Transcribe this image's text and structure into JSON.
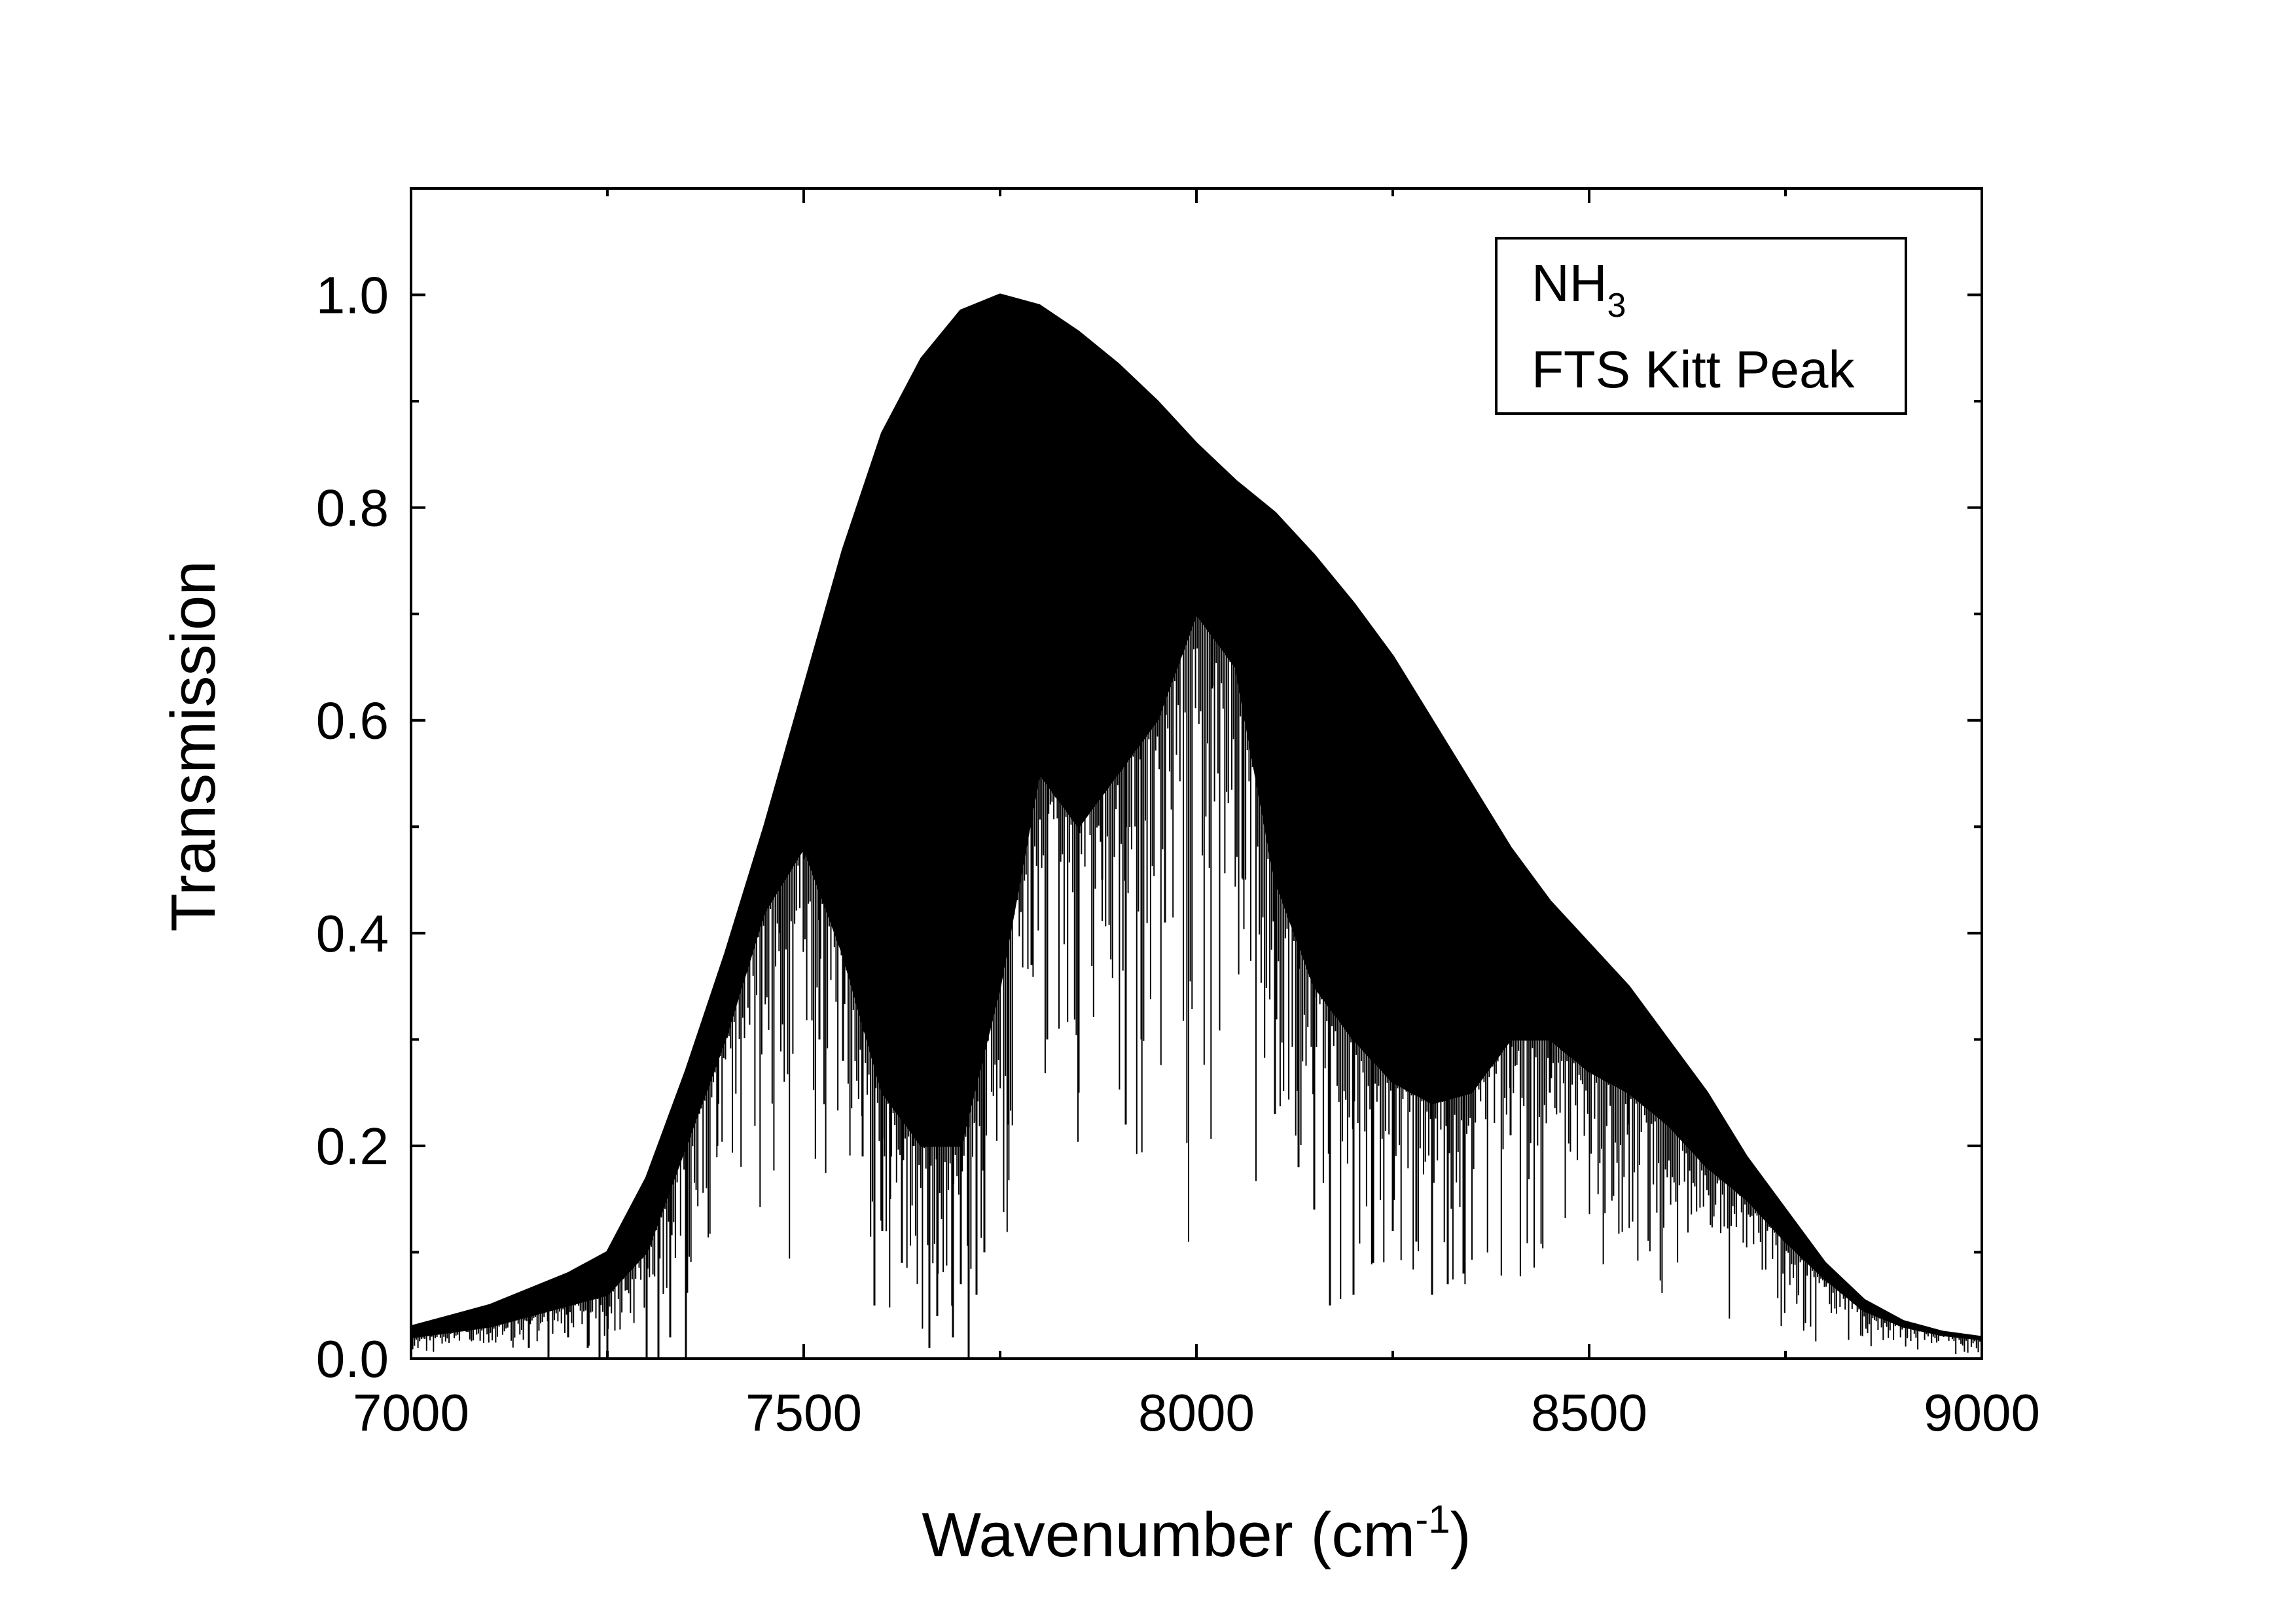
{
  "chart_data": {
    "type": "line",
    "xlabel": {
      "main": "Wavenumber (cm",
      "sup": "-1",
      "close": ")"
    },
    "ylabel": "Transmission",
    "xlim": [
      7000,
      9000
    ],
    "ylim": [
      0,
      1.1
    ],
    "x_ticks": [
      {
        "value": 7000,
        "label": "7000"
      },
      {
        "value": 7500,
        "label": "7500"
      },
      {
        "value": 8000,
        "label": "8000"
      },
      {
        "value": 8500,
        "label": "8500"
      },
      {
        "value": 9000,
        "label": "9000"
      }
    ],
    "y_ticks": [
      {
        "value": 0.0,
        "label": "0.0"
      },
      {
        "value": 0.2,
        "label": "0.2"
      },
      {
        "value": 0.4,
        "label": "0.4"
      },
      {
        "value": 0.6,
        "label": "0.6"
      },
      {
        "value": 0.8,
        "label": "0.8"
      },
      {
        "value": 1.0,
        "label": "1.0"
      }
    ],
    "legend": {
      "position": "top-right",
      "line1_main": "NH",
      "line1_sub": "3",
      "line2": "FTS Kitt Peak"
    },
    "grid": false,
    "series": [
      {
        "upper_envelope": {
          "x": [
            7000,
            7050,
            7100,
            7150,
            7200,
            7250,
            7300,
            7350,
            7400,
            7450,
            7500,
            7550,
            7600,
            7650,
            7700,
            7750,
            7800,
            7850,
            7900,
            7950,
            8000,
            8050,
            8100,
            8150,
            8200,
            8250,
            8300,
            8350,
            8400,
            8450,
            8500,
            8550,
            8600,
            8650,
            8700,
            8750,
            8800,
            8850,
            8900,
            8950,
            9000
          ],
          "y": [
            0.03,
            0.04,
            0.05,
            0.065,
            0.08,
            0.1,
            0.17,
            0.27,
            0.38,
            0.5,
            0.63,
            0.76,
            0.87,
            0.94,
            0.985,
            1.0,
            0.99,
            0.965,
            0.935,
            0.9,
            0.86,
            0.825,
            0.795,
            0.755,
            0.71,
            0.66,
            0.6,
            0.54,
            0.48,
            0.43,
            0.39,
            0.35,
            0.3,
            0.25,
            0.19,
            0.14,
            0.09,
            0.055,
            0.035,
            0.025,
            0.02
          ]
        },
        "lower_envelope": {
          "x": [
            7000,
            7050,
            7100,
            7150,
            7200,
            7250,
            7300,
            7350,
            7400,
            7450,
            7500,
            7550,
            7600,
            7650,
            7700,
            7750,
            7800,
            7850,
            7900,
            7950,
            8000,
            8050,
            8100,
            8150,
            8200,
            8250,
            8300,
            8350,
            8400,
            8450,
            8500,
            8550,
            8600,
            8650,
            8700,
            8750,
            8800,
            8850,
            8900,
            8950,
            9000
          ],
          "y": [
            0.02,
            0.025,
            0.03,
            0.04,
            0.05,
            0.06,
            0.1,
            0.2,
            0.3,
            0.42,
            0.48,
            0.38,
            0.25,
            0.2,
            0.2,
            0.35,
            0.55,
            0.5,
            0.55,
            0.6,
            0.7,
            0.65,
            0.45,
            0.35,
            0.3,
            0.26,
            0.24,
            0.25,
            0.3,
            0.3,
            0.27,
            0.25,
            0.22,
            0.18,
            0.15,
            0.11,
            0.075,
            0.045,
            0.03,
            0.022,
            0.018
          ]
        },
        "absorption_lines": {
          "x": [
            7100,
            7150,
            7175,
            7200,
            7225,
            7240,
            7250,
            7300,
            7315,
            7330,
            7350,
            7390,
            7430,
            7470,
            7500,
            7520,
            7550,
            7575,
            7590,
            7600,
            7610,
            7625,
            7640,
            7660,
            7670,
            7690,
            7700,
            7710,
            7720,
            7730,
            7760,
            7790,
            7810,
            7830,
            7850,
            7880,
            7910,
            7930,
            7960,
            8000,
            8020,
            8060,
            8100,
            8130,
            8150,
            8170,
            8200,
            8225,
            8250,
            8280,
            8300,
            8320,
            8340,
            8400,
            8450,
            8500,
            8550
          ],
          "y": [
            0.03,
            0.01,
            0.0,
            0.02,
            0.01,
            0.0,
            0.0,
            0.0,
            0.0,
            0.02,
            0.0,
            0.2,
            0.4,
            0.4,
            0.47,
            0.3,
            0.28,
            0.19,
            0.05,
            0.12,
            0.15,
            0.09,
            0.2,
            0.01,
            0.04,
            0.02,
            0.07,
            0.0,
            0.06,
            0.1,
            0.22,
            0.37,
            0.3,
            0.53,
            0.25,
            0.45,
            0.22,
            0.3,
            0.41,
            0.72,
            0.63,
            0.45,
            0.23,
            0.18,
            0.14,
            0.05,
            0.06,
            0.09,
            0.12,
            0.11,
            0.06,
            0.07,
            0.08,
            0.21,
            0.25,
            0.27,
            0.22
          ]
        }
      }
    ]
  }
}
